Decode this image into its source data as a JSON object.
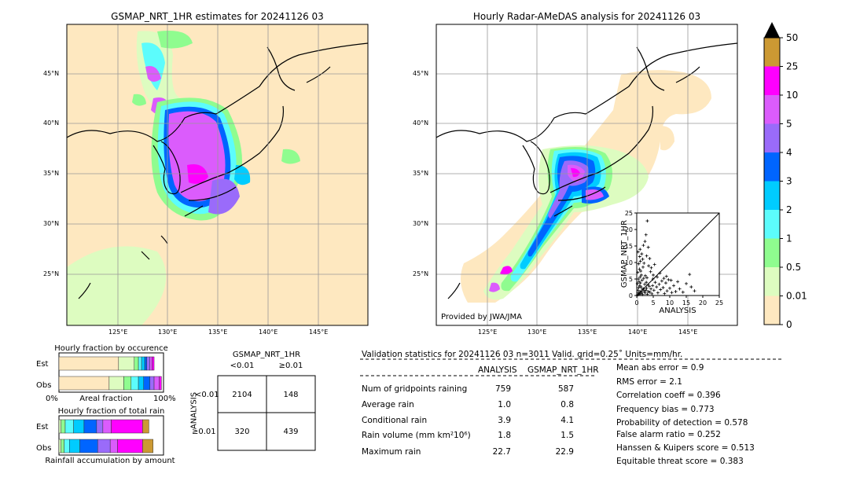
{
  "left_map": {
    "title": "GSMAP_NRT_1HR estimates for 20241126 03",
    "lat_labels": [
      "45°N",
      "40°N",
      "35°N",
      "30°N",
      "25°N"
    ],
    "lon_labels": [
      "125°E",
      "130°E",
      "135°E",
      "140°E",
      "145°E"
    ]
  },
  "right_map": {
    "title": "Hourly Radar-AMeDAS analysis for 20241126 03",
    "lat_labels": [
      "45°N",
      "40°N",
      "35°N",
      "30°N",
      "25°N"
    ],
    "lon_labels": [
      "125°E",
      "130°E",
      "135°E",
      "140°E",
      "145°E"
    ],
    "credit": "Provided by JWA/JMA"
  },
  "colorbar": {
    "labels": [
      "0",
      "0.01",
      "0.5",
      "1",
      "2",
      "3",
      "4",
      "5",
      "10",
      "25",
      "50"
    ],
    "colors": [
      "#fee8c0",
      "#ddfcc0",
      "#8ffc8f",
      "#5cfcfc",
      "#00ccff",
      "#0065ff",
      "#9a6bfa",
      "#db5cfc",
      "#ff00ff",
      "#cc9933"
    ],
    "overflow_color": "#000000"
  },
  "chart_data": [
    {
      "type": "scatter",
      "name_hint": "inset",
      "xlabel": "ANALYSIS",
      "ylabel": "GSMAP_NRT_1HR",
      "xlim": [
        0,
        25
      ],
      "ylim": [
        0,
        25
      ],
      "x_ticks": [
        "0",
        "5",
        "10",
        "15",
        "20",
        "25"
      ],
      "y_ticks": [
        "0",
        "5",
        "10",
        "15",
        "20",
        "25"
      ],
      "points": [
        [
          0.3,
          0.2
        ],
        [
          0.5,
          0.8
        ],
        [
          0.8,
          0.4
        ],
        [
          1.0,
          1.2
        ],
        [
          1.2,
          0.6
        ],
        [
          0.4,
          1.6
        ],
        [
          1.5,
          1.0
        ],
        [
          1.8,
          0.3
        ],
        [
          2.0,
          2.0
        ],
        [
          2.2,
          1.4
        ],
        [
          0.6,
          2.4
        ],
        [
          0.9,
          3.0
        ],
        [
          1.3,
          2.6
        ],
        [
          1.7,
          1.9
        ],
        [
          2.5,
          0.8
        ],
        [
          2.8,
          1.6
        ],
        [
          3.0,
          2.2
        ],
        [
          3.2,
          0.4
        ],
        [
          3.5,
          1.2
        ],
        [
          3.8,
          2.8
        ],
        [
          0.2,
          3.6
        ],
        [
          0.7,
          4.2
        ],
        [
          1.1,
          3.8
        ],
        [
          1.6,
          4.6
        ],
        [
          2.4,
          3.4
        ],
        [
          2.9,
          4.0
        ],
        [
          3.4,
          3.2
        ],
        [
          4.0,
          1.0
        ],
        [
          4.3,
          2.0
        ],
        [
          4.6,
          0.5
        ],
        [
          0.5,
          5.0
        ],
        [
          1.0,
          5.6
        ],
        [
          1.4,
          6.2
        ],
        [
          2.1,
          5.2
        ],
        [
          2.6,
          6.0
        ],
        [
          3.1,
          5.4
        ],
        [
          0.3,
          7.0
        ],
        [
          0.8,
          8.0
        ],
        [
          1.2,
          7.4
        ],
        [
          1.9,
          8.6
        ],
        [
          0.6,
          9.6
        ],
        [
          1.1,
          10.4
        ],
        [
          2.2,
          9.8
        ],
        [
          0.9,
          11.8
        ],
        [
          1.5,
          12.6
        ],
        [
          3.0,
          12.0
        ],
        [
          1.0,
          14.0
        ],
        [
          2.0,
          15.2
        ],
        [
          3.5,
          14.6
        ],
        [
          2.5,
          16.4
        ],
        [
          2.8,
          18.4
        ],
        [
          3.2,
          22.6
        ],
        [
          0.4,
          13.2
        ],
        [
          1.8,
          11.0
        ],
        [
          3.6,
          9.0
        ],
        [
          4.2,
          7.2
        ],
        [
          4.8,
          3.0
        ],
        [
          5.2,
          1.6
        ],
        [
          5.6,
          4.0
        ],
        [
          6.0,
          2.6
        ],
        [
          6.4,
          0.8
        ],
        [
          6.8,
          3.4
        ],
        [
          7.2,
          1.8
        ],
        [
          7.6,
          4.4
        ],
        [
          8.0,
          2.4
        ],
        [
          8.4,
          0.6
        ],
        [
          8.8,
          3.8
        ],
        [
          9.2,
          1.4
        ],
        [
          9.6,
          4.8
        ],
        [
          10.0,
          2.2
        ],
        [
          10.6,
          0.9
        ],
        [
          11.2,
          3.0
        ],
        [
          11.8,
          1.2
        ],
        [
          12.4,
          4.2
        ],
        [
          13.0,
          2.0
        ],
        [
          14.0,
          1.0
        ],
        [
          15.0,
          3.6
        ],
        [
          16.0,
          6.4
        ],
        [
          16.5,
          2.6
        ],
        [
          17.5,
          1.4
        ],
        [
          5.0,
          6.2
        ],
        [
          6.2,
          5.6
        ],
        [
          7.0,
          6.8
        ],
        [
          8.2,
          5.2
        ],
        [
          4.4,
          8.4
        ],
        [
          5.4,
          9.4
        ],
        [
          3.9,
          11.2
        ],
        [
          4.9,
          5.0
        ],
        [
          9.0,
          5.8
        ],
        [
          10.4,
          4.6
        ]
      ]
    },
    {
      "type": "bar",
      "name_hint": "fraction-by-occurrence",
      "title": "Hourly fraction by occurence",
      "xlabel": "Areal fraction",
      "x_tick_left": "0%",
      "x_tick_right": "100%",
      "categories": [
        "Est",
        "Obs"
      ],
      "segments": {
        "Est": [
          0.57,
          0.15,
          0.04,
          0.03,
          0.03,
          0.02,
          0.03,
          0.02,
          0.02,
          0.0
        ],
        "Obs": [
          0.48,
          0.14,
          0.07,
          0.07,
          0.05,
          0.06,
          0.04,
          0.05,
          0.02,
          0.0
        ]
      }
    },
    {
      "type": "bar",
      "name_hint": "fraction-of-total-rain",
      "title": "Hourly fraction of total rain",
      "xlabel": "Rainfall accumulation by amount",
      "categories": [
        "Est",
        "Obs"
      ],
      "segments": {
        "Est": [
          0.0,
          0.02,
          0.04,
          0.08,
          0.1,
          0.12,
          0.06,
          0.08,
          0.3,
          0.06
        ],
        "Obs": [
          0.0,
          0.02,
          0.03,
          0.05,
          0.1,
          0.17,
          0.12,
          0.07,
          0.24,
          0.1
        ]
      }
    }
  ],
  "contingency": {
    "col_header_title": "GSMAP_NRT_1HR",
    "col_lt": "<0.01",
    "col_ge": "≥0.01",
    "row_axis_title": "ANALYSIS",
    "row_lt": "<0.01",
    "row_ge": "≥0.01",
    "cells": [
      "2104",
      "148",
      "320",
      "439"
    ]
  },
  "validation": {
    "header": "Validation statistics for 20241126 03  n=3011 Valid. grid=0.25˚ Units=mm/hr.",
    "col_analysis": "ANALYSIS",
    "col_gsmap": "GSMAP_NRT_1HR",
    "rows": [
      {
        "label": "Num of gridpoints raining",
        "analysis": "759",
        "gsmap": "587"
      },
      {
        "label": "Average rain",
        "analysis": "1.0",
        "gsmap": "0.8"
      },
      {
        "label": "Conditional rain",
        "analysis": "3.9",
        "gsmap": "4.1"
      },
      {
        "label": "Rain volume (mm km²10⁶)",
        "analysis": "1.8",
        "gsmap": "1.5"
      },
      {
        "label": "Maximum rain",
        "analysis": "22.7",
        "gsmap": "22.9"
      }
    ],
    "scores": [
      "Mean abs error =    0.9",
      "RMS error =    2.1",
      "Correlation coeff =  0.396",
      "Frequency bias =  0.773",
      "Probability of detection =  0.578",
      "False alarm ratio =  0.252",
      "Hanssen & Kuipers score =  0.513",
      "Equitable threat score =  0.383"
    ]
  }
}
